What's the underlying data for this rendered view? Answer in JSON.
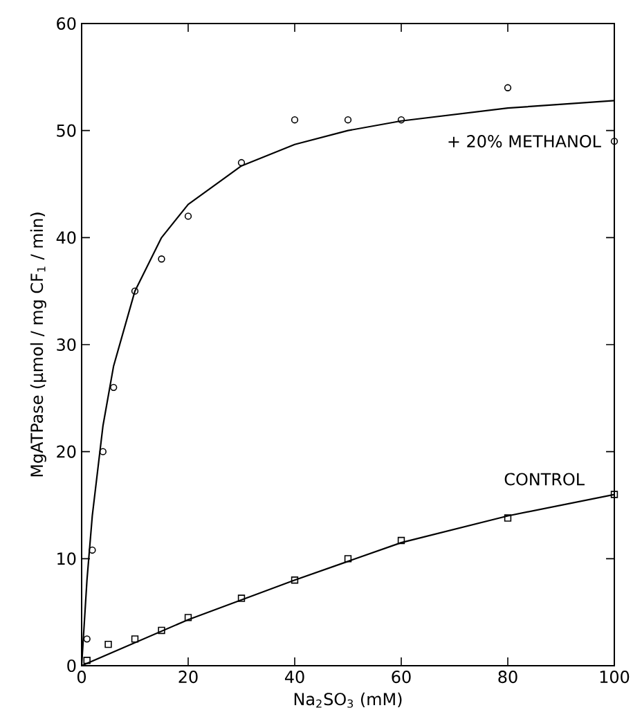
{
  "chart_data": {
    "type": "scatter",
    "xlabel": "Na$_{2}$SO$_{3}$  (mM)",
    "ylabel": "MgATPase (μmol / mg CF$_{1}$ / min)",
    "xlim": [
      0,
      100
    ],
    "ylim": [
      0,
      60
    ],
    "xticks": [
      0,
      20,
      40,
      60,
      80,
      100
    ],
    "yticks": [
      0,
      10,
      20,
      30,
      40,
      50,
      60
    ],
    "grid": false,
    "series": [
      {
        "name": "+ 20% METHANOL",
        "marker": "circle",
        "color": "#000000",
        "x": [
          1,
          2,
          4,
          6,
          10,
          15,
          20,
          30,
          40,
          50,
          60,
          80,
          100
        ],
        "values": [
          2.5,
          10.8,
          20,
          26,
          35,
          38,
          42,
          47,
          51,
          51,
          51,
          54,
          49
        ]
      },
      {
        "name": "CONTROL",
        "marker": "square",
        "color": "#000000",
        "x": [
          1,
          5,
          10,
          15,
          20,
          30,
          40,
          50,
          60,
          80,
          100
        ],
        "values": [
          0.5,
          2,
          2.5,
          3.3,
          4.5,
          6.3,
          8,
          10,
          11.7,
          13.8,
          16
        ]
      },
      {
        "type": "line",
        "marker": "none",
        "line_style": "solid",
        "color": "#000000",
        "x": [
          0,
          1,
          2,
          4,
          6,
          10,
          15,
          20,
          30,
          40,
          50,
          60,
          80,
          100
        ],
        "values": [
          0,
          8,
          14,
          22.4,
          28,
          35,
          40,
          43.1,
          46.7,
          48.7,
          50,
          50.9,
          52.1,
          52.8
        ]
      },
      {
        "type": "line",
        "marker": "none",
        "line_style": "solid",
        "color": "#000000",
        "x": [
          0,
          20,
          40,
          60,
          80,
          100
        ],
        "values": [
          0,
          4.3,
          8,
          11.5,
          14,
          16
        ]
      }
    ]
  }
}
